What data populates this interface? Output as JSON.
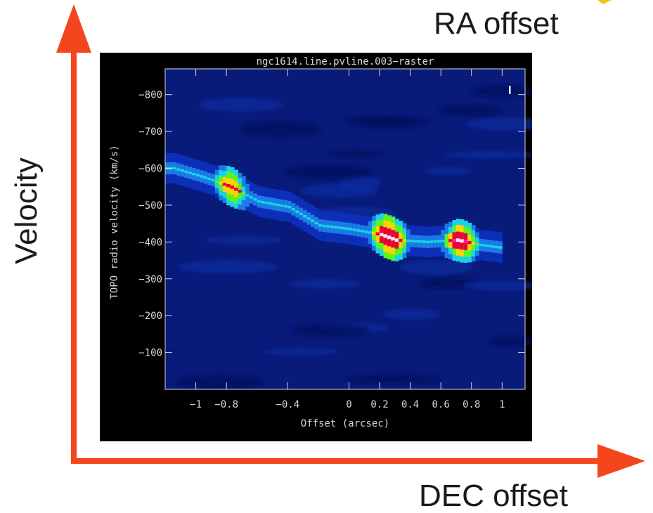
{
  "annotations": {
    "ra_offset": "RA offset",
    "dec_offset": "DEC offset",
    "velocity": "Velocity"
  },
  "colors": {
    "arrow_red": "#f5451d",
    "arrow_yellow": "#f7c21b",
    "panel_background": "#000000",
    "axis_text": "#d8d8d8"
  },
  "chart_data": {
    "type": "heatmap",
    "title": "ngc1614.line.pvline.003−raster",
    "xlabel": "Offset (arcsec)",
    "ylabel": "TOPO radio velocity  (km/s)",
    "xlim": [
      -1.2,
      1.15
    ],
    "ylim": [
      0,
      -870
    ],
    "y_inverted": true,
    "grid": false,
    "x_ticks": [
      -1,
      -0.8,
      -0.4,
      0,
      0.2,
      0.4,
      0.6,
      0.8,
      1
    ],
    "x_tick_labels": [
      "−1",
      "−0.8",
      "−0.4",
      "0",
      "0.2",
      "0.4",
      "0.6",
      "0.8",
      "1"
    ],
    "y_ticks": [
      -800,
      -700,
      -600,
      -500,
      -400,
      -300,
      -200,
      -100
    ],
    "y_tick_labels": [
      "−800",
      "−700",
      "−600",
      "−500",
      "−400",
      "−300",
      "−200",
      "−100"
    ],
    "emission_ridge": [
      {
        "offset": -1.15,
        "velocity": -600
      },
      {
        "offset": -0.95,
        "velocity": -575
      },
      {
        "offset": -0.78,
        "velocity": -550
      },
      {
        "offset": -0.6,
        "velocity": -510
      },
      {
        "offset": -0.4,
        "velocity": -495
      },
      {
        "offset": -0.2,
        "velocity": -445
      },
      {
        "offset": 0.0,
        "velocity": -435
      },
      {
        "offset": 0.2,
        "velocity": -420
      },
      {
        "offset": 0.3,
        "velocity": -405
      },
      {
        "offset": 0.5,
        "velocity": -400
      },
      {
        "offset": 0.7,
        "velocity": -405
      },
      {
        "offset": 0.85,
        "velocity": -392
      },
      {
        "offset": 0.98,
        "velocity": -385
      }
    ],
    "emission_peaks": [
      {
        "offset": -0.78,
        "velocity": -555,
        "intensity": 0.72
      },
      {
        "offset": 0.25,
        "velocity": -415,
        "intensity": 1.0
      },
      {
        "offset": 0.72,
        "velocity": -405,
        "intensity": 0.88
      }
    ]
  }
}
